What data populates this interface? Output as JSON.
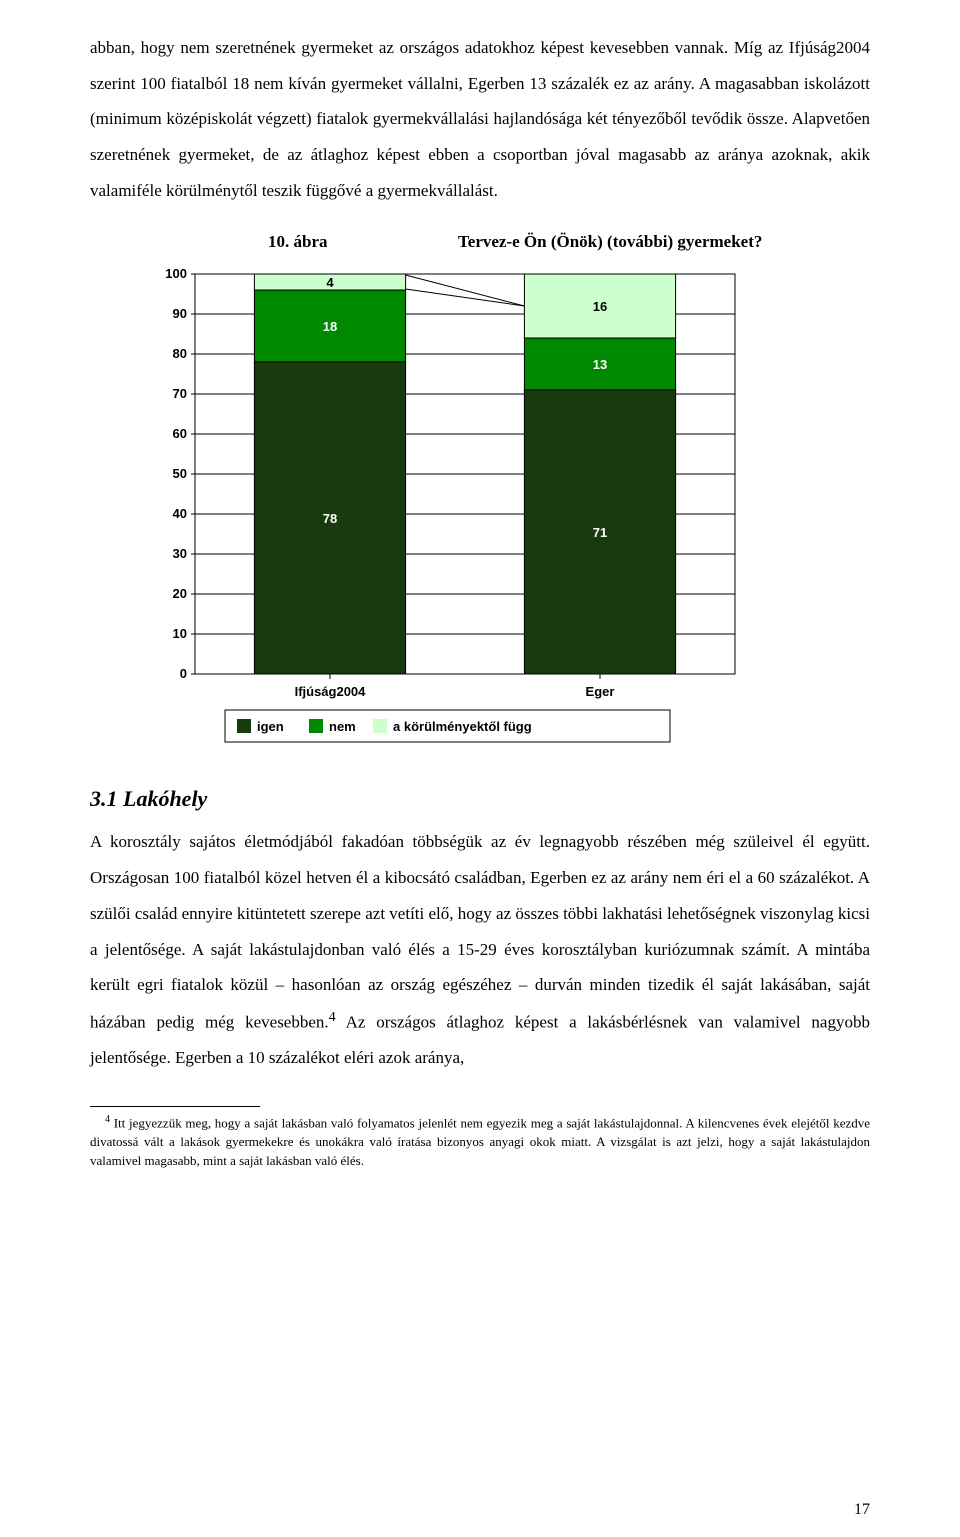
{
  "para1": "abban, hogy nem szeretnének gyermeket az országos adatokhoz képest kevesebben vannak. Míg az Ifjúság2004 szerint 100 fiatalból 18 nem kíván gyermeket vállalni, Egerben 13 százalék ez az arány. A magasabban iskolázott (minimum középiskolát végzett) fiatalok gyermekvállalási hajlandósága két tényezőből tevődik össze. Alapvetően szeretnének gyermeket, de az átlaghoz képest ebben a csoportban jóval magasabb az aránya azoknak, akik valamiféle körülménytől teszik függővé a gyermekvállalást.",
  "chart": {
    "label": "10. ábra",
    "title": "Tervez-e Ön (Önök) (további) gyermeket?",
    "categories": [
      "Ifjúság2004",
      "Eger"
    ],
    "series": [
      {
        "name": "igen",
        "values": [
          78,
          71
        ],
        "color": "#173b0f"
      },
      {
        "name": "nem",
        "values": [
          18,
          13
        ],
        "color": "#008800"
      },
      {
        "name": "a körülményektől függ",
        "values": [
          4,
          16
        ],
        "color": "#ccffcc"
      }
    ],
    "ylim": [
      0,
      100
    ],
    "ytick_step": 10,
    "label_color_igen": "#ffffff",
    "label_color_nem": "#ffffff",
    "label_color_fugg": "#000000",
    "axis_fontsize": 13,
    "label_fontsize": 13,
    "legend_fontsize": 13,
    "grid_color": "#000000",
    "legend_swatch": [
      "#173b0f",
      "#008800",
      "#ccffcc"
    ],
    "legend_labels": [
      "igen",
      "nem",
      "a körülményektől függ"
    ],
    "plot_bg": "#ffffff",
    "leaders": {
      "x1_first": 206,
      "y1_first": 16,
      "x2_first": 428,
      "y2_first": 64,
      "x1_second": 206,
      "y1_second": 28,
      "x2_second": 428,
      "y2_second": 64
    }
  },
  "section_head": "3.1 Lakóhely",
  "para2_a": "A korosztály sajátos életmódjából fakadóan többségük az év legnagyobb részében még szüleivel él együtt. Országosan 100 fiatalból közel hetven él a kibocsátó családban, Egerben ez az arány nem éri el a 60 százalékot. A szülői család ennyire kitüntetett szerepe azt vetíti elő, hogy az összes többi lakhatási lehetőségnek viszonylag kicsi a jelentősége. A saját lakástulajdonban való élés a 15-29 éves korosztályban kuriózumnak számít. A mintába került egri fiatalok közül – hasonlóan az ország egészéhez – durván minden tizedik él saját lakásában, saját házában pedig még kevesebben.",
  "para2_sup": "4",
  "para2_b": " Az országos átlaghoz képest a lakásbérlésnek van valamivel nagyobb jelentősége. Egerben a 10 százalékot eléri azok aránya,",
  "footnote_sup": "4",
  "footnote": " Itt jegyezzük meg, hogy a saját lakásban való folyamatos jelenlét nem egyezik meg a saját lakástulajdonnal. A kilencvenes évek elejétől kezdve divatossá vált a lakások gyermekekre és unokákra való íratása bizonyos anyagi okok miatt. A vizsgálat is azt jelzi, hogy a saját lakástulajdon valamivel magasabb, mint a saját lakásban való élés.",
  "page_number": "17"
}
